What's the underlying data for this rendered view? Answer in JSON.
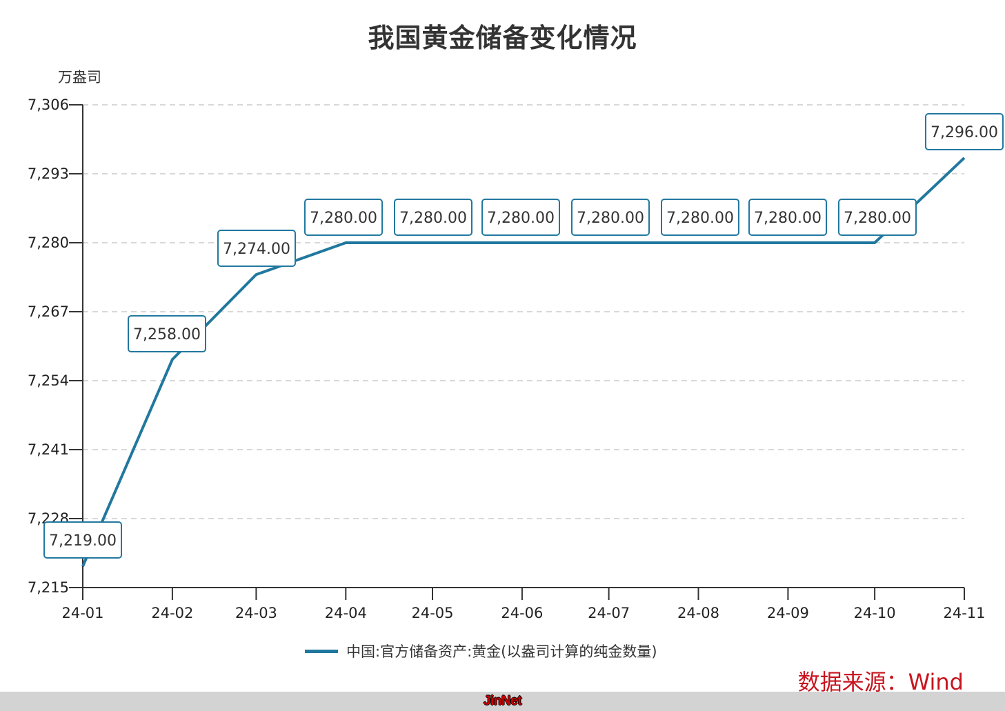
{
  "title": "我国黄金储备变化情况",
  "y_unit": "万盎司",
  "legend": {
    "label": "中国:官方储备资产:黄金(以盎司计算的纯金数量)",
    "color": "#21789F"
  },
  "source": "数据来源：Wind",
  "footer": {
    "brand": "JinNet"
  },
  "colors": {
    "line": "#21789F",
    "label_border": "#21789F",
    "grid": "#CCCCCC",
    "axis": "#333333",
    "source": "#C8141E"
  },
  "chart_data": {
    "type": "line",
    "title": "我国黄金储备变化情况",
    "xlabel": "",
    "ylabel": "万盎司",
    "categories": [
      "24-01",
      "24-02",
      "24-03",
      "24-04",
      "24-05",
      "24-06",
      "24-07",
      "24-08",
      "24-09",
      "24-10",
      "24-11"
    ],
    "series": [
      {
        "name": "中国:官方储备资产:黄金(以盎司计算的纯金数量)",
        "values": [
          7219,
          7258,
          7274,
          7280,
          7280,
          7280,
          7280,
          7280,
          7280,
          7280,
          7296
        ],
        "labels": [
          "7,219.00",
          "7,258.00",
          "7,274.00",
          "7,280.00",
          "7,280.00",
          "7,280.00",
          "7,280.00",
          "7,280.00",
          "7,280.00",
          "7,280.00",
          "7,296.00"
        ]
      }
    ],
    "yticks": [
      7215,
      7228,
      7241,
      7254,
      7267,
      7280,
      7293,
      7306
    ],
    "ytick_labels": [
      "7,215",
      "7,228",
      "7,241",
      "7,254",
      "7,267",
      "7,280",
      "7,293",
      "7,306"
    ],
    "ylim": [
      7215,
      7306
    ],
    "grid": true,
    "legend_position": "bottom"
  }
}
